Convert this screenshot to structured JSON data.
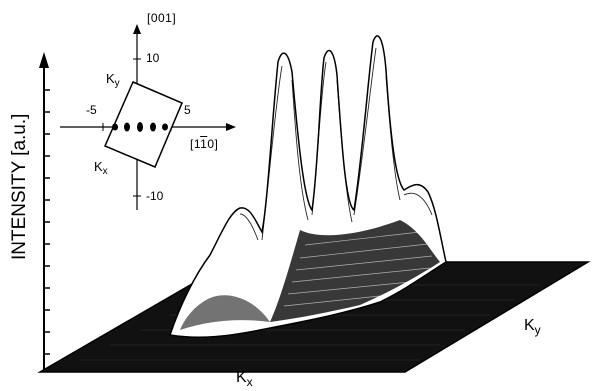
{
  "ylabel": "INTENSITY [a.u.]",
  "xlabel_main": "K",
  "xlabel_main_sub": "x",
  "ylabel_right": "K",
  "ylabel_right_sub": "y",
  "inset": {
    "vertical_direction": "[001]",
    "horizontal_direction": "[1̅1̅0]",
    "horizontal_direction_plain": "[1",
    "horizontal_direction_bar": "1",
    "horizontal_direction_end": "0]",
    "ticks": {
      "up": "10",
      "down": "-10",
      "left": "-5",
      "right": "5"
    },
    "ky_label": "K",
    "ky_sub": "y",
    "kx_label": "K",
    "kx_sub": "x"
  },
  "peaks_description_count": 4,
  "colors": {
    "ink": "#000000",
    "paper": "#ffffff"
  }
}
